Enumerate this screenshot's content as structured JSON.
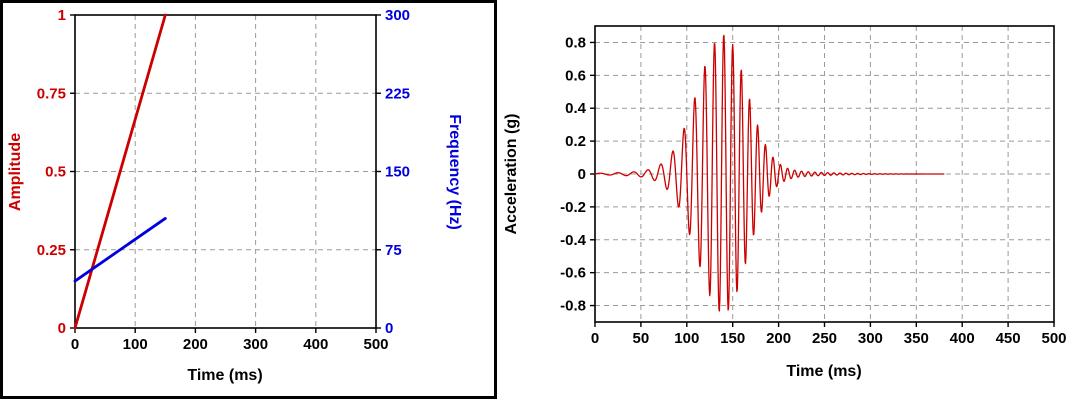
{
  "chart_data": [
    {
      "type": "line",
      "panel": "left",
      "xlabel": "Time (ms)",
      "xlim": [
        0,
        500
      ],
      "xticks": [
        0,
        100,
        200,
        300,
        400,
        500
      ],
      "ylabel": "Amplitude",
      "ylim": [
        0,
        1
      ],
      "yticks": [
        0,
        0.25,
        0.5,
        0.75,
        1
      ],
      "y2label": "Frequency (Hz)",
      "y2lim": [
        0,
        300
      ],
      "y2ticks": [
        0,
        75,
        150,
        225,
        300
      ],
      "grid": "dashed",
      "legend": "none",
      "colors": {
        "x_text": "#000000",
        "y_left_text": "#cc0000",
        "y_right_text": "#0000dd",
        "grid": "#9a9a9a",
        "frame": "#000000"
      },
      "series": [
        {
          "name": "amplitude-ramp",
          "axis": "left",
          "color": "#cc0000",
          "width": 2.8,
          "x": [
            0,
            150
          ],
          "y": [
            0,
            1
          ]
        },
        {
          "name": "frequency-sweep",
          "axis": "right",
          "color": "#0000dd",
          "width": 2.8,
          "x": [
            0,
            150
          ],
          "y": [
            45,
            105
          ]
        }
      ]
    },
    {
      "type": "line",
      "panel": "right",
      "xlabel": "Time (ms)",
      "xlim": [
        0,
        500
      ],
      "xticks": [
        0,
        50,
        100,
        150,
        200,
        250,
        300,
        350,
        400,
        450,
        500
      ],
      "ylabel": "Acceleration (g)",
      "ylim": [
        -0.9,
        0.9
      ],
      "yticks": [
        -0.8,
        -0.6,
        -0.4,
        -0.2,
        0,
        0.2,
        0.4,
        0.6,
        0.8
      ],
      "grid": "dashed",
      "legend": "none",
      "colors": {
        "x_text": "#000000",
        "y_left_text": "#000000",
        "grid": "#9a9a9a",
        "frame": "#000000"
      },
      "series": [
        {
          "name": "wavelet-burst",
          "axis": "left",
          "color": "#cc0000",
          "width": 1.3,
          "generated": {
            "model": "gaussian-envelope frequency sweep burst",
            "t_start_ms": 0,
            "t_end_ms": 380,
            "sample_step_ms": 0.5,
            "peak_g": 0.82,
            "peak_time_ms": 140,
            "sigma_rise_ms": 28,
            "sigma_fall_ms": 25,
            "tail_peak_g": 0.03,
            "tail_sigma_ms": 70,
            "freq_start_hz": 45,
            "freq_sweep_hz_per_ms": 0.4
          },
          "key_points": {
            "max_g": 0.82,
            "max_at_ms": 140,
            "min_g": -0.72,
            "oscillation_span_ms": [
              20,
              250
            ],
            "trace_end_ms": 380
          }
        }
      ]
    }
  ]
}
